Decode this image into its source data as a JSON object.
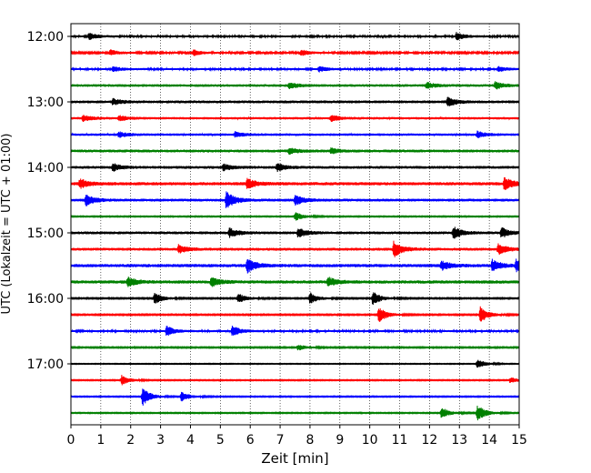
{
  "chart_data": {
    "type": "line",
    "xlabel": "Zeit  [min]",
    "ylabel": "UTC (Lokalzeit = UTC + 01:00)",
    "xlim": [
      0,
      15
    ],
    "x_ticks": [
      0,
      1,
      2,
      3,
      4,
      5,
      6,
      7,
      8,
      9,
      10,
      11,
      12,
      13,
      14,
      15
    ],
    "x_tick_labels": [
      "0",
      "1",
      "2",
      "3",
      "4",
      "5",
      "6",
      "7",
      "8",
      "9",
      "10",
      "11",
      "12",
      "13",
      "14",
      "15"
    ],
    "vertical_grid": "dotted at each minute",
    "y_tick_labels": [
      "12:00",
      "13:00",
      "14:00",
      "15:00",
      "16:00",
      "17:00"
    ],
    "trace_colors": [
      "#000000",
      "#ff0000",
      "#0000ff",
      "#008000"
    ],
    "traces": [
      {
        "start": "12:00",
        "color": "#000000",
        "noise": 0.1,
        "events": [
          {
            "t": 0.6,
            "amp": 0.35
          },
          {
            "t": 12.9,
            "amp": 0.35
          }
        ]
      },
      {
        "start": "12:15",
        "color": "#ff0000",
        "noise": 0.09,
        "events": [
          {
            "t": 1.3,
            "amp": 0.3
          },
          {
            "t": 4.1,
            "amp": 0.3
          },
          {
            "t": 7.7,
            "amp": 0.3
          }
        ]
      },
      {
        "start": "12:30",
        "color": "#0000ff",
        "noise": 0.1,
        "events": [
          {
            "t": 1.4,
            "amp": 0.25
          },
          {
            "t": 8.3,
            "amp": 0.25
          },
          {
            "t": 14.3,
            "amp": 0.25
          }
        ]
      },
      {
        "start": "12:45",
        "color": "#008000",
        "noise": 0.13,
        "events": [
          {
            "t": 7.3,
            "amp": 0.3
          },
          {
            "t": 11.9,
            "amp": 0.3
          },
          {
            "t": 14.2,
            "amp": 0.35
          }
        ]
      },
      {
        "start": "13:00",
        "color": "#000000",
        "noise": 0.14,
        "events": [
          {
            "t": 1.4,
            "amp": 0.3
          },
          {
            "t": 12.6,
            "amp": 0.45
          }
        ]
      },
      {
        "start": "13:15",
        "color": "#ff0000",
        "noise": 0.12,
        "events": [
          {
            "t": 0.4,
            "amp": 0.3
          },
          {
            "t": 1.6,
            "amp": 0.25
          },
          {
            "t": 8.7,
            "amp": 0.3
          }
        ]
      },
      {
        "start": "13:30",
        "color": "#0000ff",
        "noise": 0.12,
        "events": [
          {
            "t": 1.6,
            "amp": 0.25
          },
          {
            "t": 5.5,
            "amp": 0.25
          },
          {
            "t": 13.6,
            "amp": 0.3
          }
        ]
      },
      {
        "start": "13:45",
        "color": "#008000",
        "noise": 0.14,
        "events": [
          {
            "t": 7.3,
            "amp": 0.3
          },
          {
            "t": 8.7,
            "amp": 0.25
          }
        ]
      },
      {
        "start": "14:00",
        "color": "#000000",
        "noise": 0.14,
        "events": [
          {
            "t": 1.4,
            "amp": 0.35
          },
          {
            "t": 5.1,
            "amp": 0.3
          },
          {
            "t": 6.9,
            "amp": 0.35
          }
        ]
      },
      {
        "start": "14:15",
        "color": "#ff0000",
        "noise": 0.16,
        "events": [
          {
            "t": 0.3,
            "amp": 0.45
          },
          {
            "t": 5.9,
            "amp": 0.5
          },
          {
            "t": 14.5,
            "amp": 0.6
          }
        ]
      },
      {
        "start": "14:30",
        "color": "#0000ff",
        "noise": 0.14,
        "events": [
          {
            "t": 0.5,
            "amp": 0.55
          },
          {
            "t": 5.2,
            "amp": 0.9
          },
          {
            "t": 7.5,
            "amp": 0.5
          }
        ]
      },
      {
        "start": "14:45",
        "color": "#008000",
        "noise": 0.05,
        "events": [
          {
            "t": 7.5,
            "amp": 0.45
          }
        ]
      },
      {
        "start": "15:00",
        "color": "#000000",
        "noise": 0.14,
        "events": [
          {
            "t": 5.3,
            "amp": 0.45
          },
          {
            "t": 7.6,
            "amp": 0.45
          },
          {
            "t": 12.8,
            "amp": 0.6
          },
          {
            "t": 14.4,
            "amp": 0.5
          }
        ]
      },
      {
        "start": "15:15",
        "color": "#ff0000",
        "noise": 0.14,
        "events": [
          {
            "t": 3.6,
            "amp": 0.4
          },
          {
            "t": 10.8,
            "amp": 0.8
          },
          {
            "t": 14.3,
            "amp": 0.5
          }
        ]
      },
      {
        "start": "15:30",
        "color": "#0000ff",
        "noise": 0.16,
        "events": [
          {
            "t": 5.9,
            "amp": 0.7
          },
          {
            "t": 12.4,
            "amp": 0.45
          },
          {
            "t": 14.1,
            "amp": 0.55
          },
          {
            "t": 14.9,
            "amp": 0.55
          }
        ]
      },
      {
        "start": "15:45",
        "color": "#008000",
        "noise": 0.16,
        "events": [
          {
            "t": 1.9,
            "amp": 0.45
          },
          {
            "t": 4.7,
            "amp": 0.45
          },
          {
            "t": 8.6,
            "amp": 0.45
          }
        ]
      },
      {
        "start": "16:00",
        "color": "#000000",
        "noise": 0.06,
        "events": [
          {
            "t": 2.8,
            "amp": 0.6
          },
          {
            "t": 5.6,
            "amp": 0.5
          },
          {
            "t": 8.0,
            "amp": 0.6
          },
          {
            "t": 10.1,
            "amp": 0.7
          }
        ]
      },
      {
        "start": "16:15",
        "color": "#ff0000",
        "noise": 0.06,
        "events": [
          {
            "t": 10.3,
            "amp": 0.8
          },
          {
            "t": 13.7,
            "amp": 0.8
          }
        ]
      },
      {
        "start": "16:30",
        "color": "#0000ff",
        "noise": 0.1,
        "events": [
          {
            "t": 3.2,
            "amp": 0.5
          },
          {
            "t": 5.4,
            "amp": 0.5
          }
        ]
      },
      {
        "start": "16:45",
        "color": "#008000",
        "noise": 0.06,
        "events": [
          {
            "t": 7.6,
            "amp": 0.3
          }
        ]
      },
      {
        "start": "17:00",
        "color": "#000000",
        "noise": 0.04,
        "events": [
          {
            "t": 13.6,
            "amp": 0.5
          }
        ]
      },
      {
        "start": "17:15",
        "color": "#ff0000",
        "noise": 0.05,
        "events": [
          {
            "t": 1.7,
            "amp": 0.5
          },
          {
            "t": 14.7,
            "amp": 0.3
          }
        ]
      },
      {
        "start": "17:30",
        "color": "#0000ff",
        "noise": 0.05,
        "events": [
          {
            "t": 2.4,
            "amp": 0.95
          },
          {
            "t": 3.7,
            "amp": 0.5
          }
        ]
      },
      {
        "start": "17:45",
        "color": "#008000",
        "noise": 0.05,
        "events": [
          {
            "t": 12.4,
            "amp": 0.6
          },
          {
            "t": 13.6,
            "amp": 0.85
          }
        ]
      }
    ]
  }
}
